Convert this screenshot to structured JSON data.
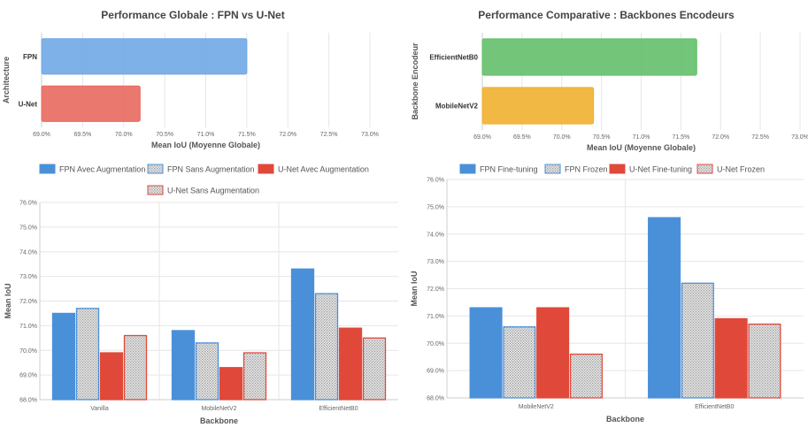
{
  "chart_data": [
    {
      "type": "bar",
      "orientation": "horizontal",
      "title": "Performance Globale : FPN vs U-Net",
      "xlabel": "Mean IoU (Moyenne Globale)",
      "ylabel": "Architecture",
      "categories": [
        "FPN",
        "U-Net"
      ],
      "values": [
        71.5,
        70.2
      ],
      "colors": [
        "#6fa8e6",
        "#e8695e"
      ],
      "xlim": [
        69.0,
        73.0
      ],
      "xticks": [
        "69.0%",
        "69.5%",
        "70.0%",
        "70.5%",
        "71.0%",
        "71.5%",
        "72.0%",
        "72.5%",
        "73.0%"
      ],
      "grid": true
    },
    {
      "type": "bar",
      "orientation": "horizontal",
      "title": "Performance Comparative : Backbones Encodeurs",
      "xlabel": "Mean IoU (Moyenne Globale)",
      "ylabel": "Backbone Encodeur",
      "categories": [
        "EfficientNetB0",
        "MobileNetV2"
      ],
      "values": [
        71.7,
        70.4
      ],
      "colors": [
        "#64bf6a",
        "#f0b030"
      ],
      "xlim": [
        69.0,
        73.0
      ],
      "xticks": [
        "69.0%",
        "69.5%",
        "70.0%",
        "70.5%",
        "71.0%",
        "71.5%",
        "72.0%",
        "72.5%",
        "73.0%"
      ],
      "grid": true
    },
    {
      "type": "bar",
      "xlabel": "Backbone",
      "ylabel": "Mean IoU",
      "categories": [
        "Vanilla",
        "MobileNetV2",
        "EfficientNetB0"
      ],
      "ylim": [
        68.0,
        76.0
      ],
      "yticks": [
        "68.0%",
        "69.0%",
        "70.0%",
        "71.0%",
        "72.0%",
        "73.0%",
        "74.0%",
        "75.0%",
        "76.0%"
      ],
      "legend_position": "top",
      "series": [
        {
          "name": "FPN Avec Augmentation",
          "values": [
            71.5,
            70.8,
            73.3
          ],
          "color": "#4a90d9",
          "pattern": false
        },
        {
          "name": "FPN Sans Augmentation",
          "values": [
            71.7,
            70.3,
            72.3
          ],
          "color": "#4a90d9",
          "pattern": true
        },
        {
          "name": "U-Net Avec Augmentation",
          "values": [
            69.9,
            69.3,
            70.9
          ],
          "color": "#e0493a",
          "pattern": false
        },
        {
          "name": "U-Net Sans Augmentation",
          "values": [
            70.6,
            69.9,
            70.5
          ],
          "color": "#e0493a",
          "pattern": true
        }
      ],
      "grid": true
    },
    {
      "type": "bar",
      "xlabel": "Backbone",
      "ylabel": "Mean IoU",
      "categories": [
        "MobileNetV2",
        "EfficientNetB0"
      ],
      "ylim": [
        68.0,
        76.0
      ],
      "yticks": [
        "68.0%",
        "69.0%",
        "70.0%",
        "71.0%",
        "72.0%",
        "73.0%",
        "74.0%",
        "75.0%",
        "76.0%"
      ],
      "legend_position": "top",
      "series": [
        {
          "name": "FPN Fine-tuning",
          "values": [
            71.3,
            74.6
          ],
          "color": "#4a90d9",
          "pattern": false
        },
        {
          "name": "FPN Frozen",
          "values": [
            70.6,
            72.2
          ],
          "color": "#4a90d9",
          "pattern": true
        },
        {
          "name": "U-Net Fine-tuning",
          "values": [
            71.3,
            70.9
          ],
          "color": "#e0493a",
          "pattern": false
        },
        {
          "name": "U-Net Frozen",
          "values": [
            69.6,
            70.7
          ],
          "color": "#e0493a",
          "pattern": true
        }
      ],
      "grid": true
    }
  ]
}
